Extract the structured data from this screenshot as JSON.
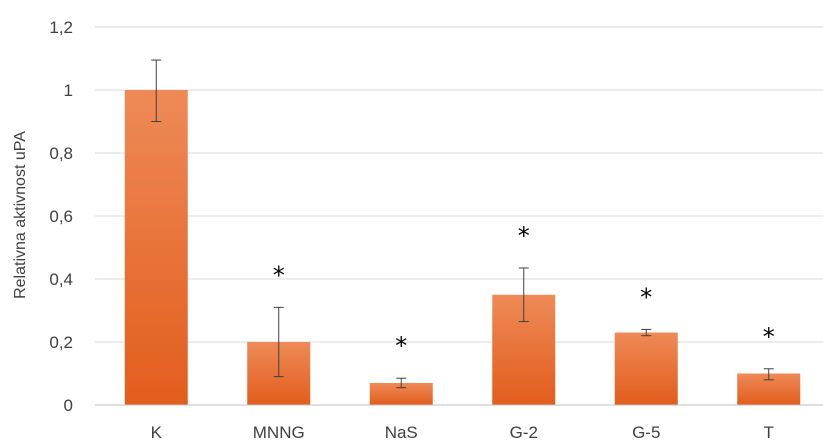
{
  "chart_data": {
    "type": "bar",
    "title": "",
    "xlabel": "",
    "ylabel": "Relativna aktivnost uPA",
    "categories": [
      "K",
      "MNNG",
      "NaS",
      "G-2",
      "G-5",
      "T"
    ],
    "values": [
      1.0,
      0.2,
      0.07,
      0.35,
      0.23,
      0.1
    ],
    "error_low": [
      0.9,
      0.09,
      0.055,
      0.265,
      0.22,
      0.08
    ],
    "error_high": [
      1.095,
      0.31,
      0.085,
      0.435,
      0.24,
      0.115
    ],
    "significance_markers": [
      "",
      "*",
      "*",
      "*",
      "*",
      "*"
    ],
    "ylim": [
      0,
      1.2
    ],
    "yticks": [
      0,
      0.2,
      0.4,
      0.6,
      0.8,
      1,
      1.2
    ],
    "ytick_labels": [
      "0",
      "0,2",
      "0,4",
      "0,6",
      "0,8",
      "1",
      "1,2"
    ],
    "grid": true,
    "legend": "none",
    "colors": {
      "bar_top": "#ee8a57",
      "bar_bottom": "#e25d1c",
      "grid": "#d9d9d9",
      "axis": "#bfbfbf",
      "error_bar": "#404040",
      "text": "#404040"
    }
  }
}
